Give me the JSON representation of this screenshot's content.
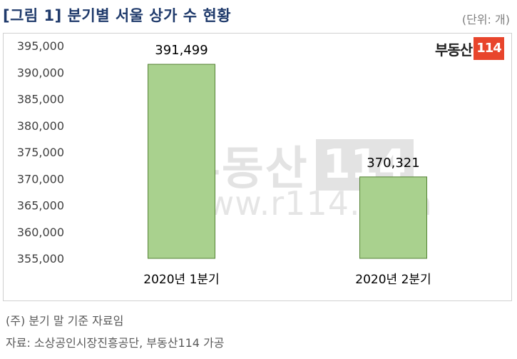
{
  "header": {
    "title": "[그림 1] 분기별 서울 상가 수 현황",
    "unit": "(단위: 개)"
  },
  "logo": {
    "text": "부동산",
    "number": "114"
  },
  "watermark": {
    "text": "부동산",
    "number": "114",
    "url": "www.r114.com"
  },
  "notes": {
    "note1": "(주) 분기 말 기준 자료임",
    "note2": "자료: 소상공인시장진흥공단, 부동산114 가공"
  },
  "colors": {
    "bar_fill": "#a9d18e",
    "bar_stroke": "#548235",
    "title": "#1f3a6b"
  },
  "chart_data": {
    "type": "bar",
    "categories": [
      "2020년 1분기",
      "2020년 2분기"
    ],
    "values": [
      391499,
      370321
    ],
    "value_labels": [
      "391,499",
      "370,321"
    ],
    "ylim": [
      355000,
      395000
    ],
    "yticks": [
      355000,
      360000,
      365000,
      370000,
      375000,
      380000,
      385000,
      390000,
      395000
    ],
    "ytick_labels": [
      "355,000",
      "360,000",
      "365,000",
      "370,000",
      "375,000",
      "380,000",
      "385,000",
      "390,000",
      "395,000"
    ],
    "grid": false,
    "legend": "none"
  }
}
